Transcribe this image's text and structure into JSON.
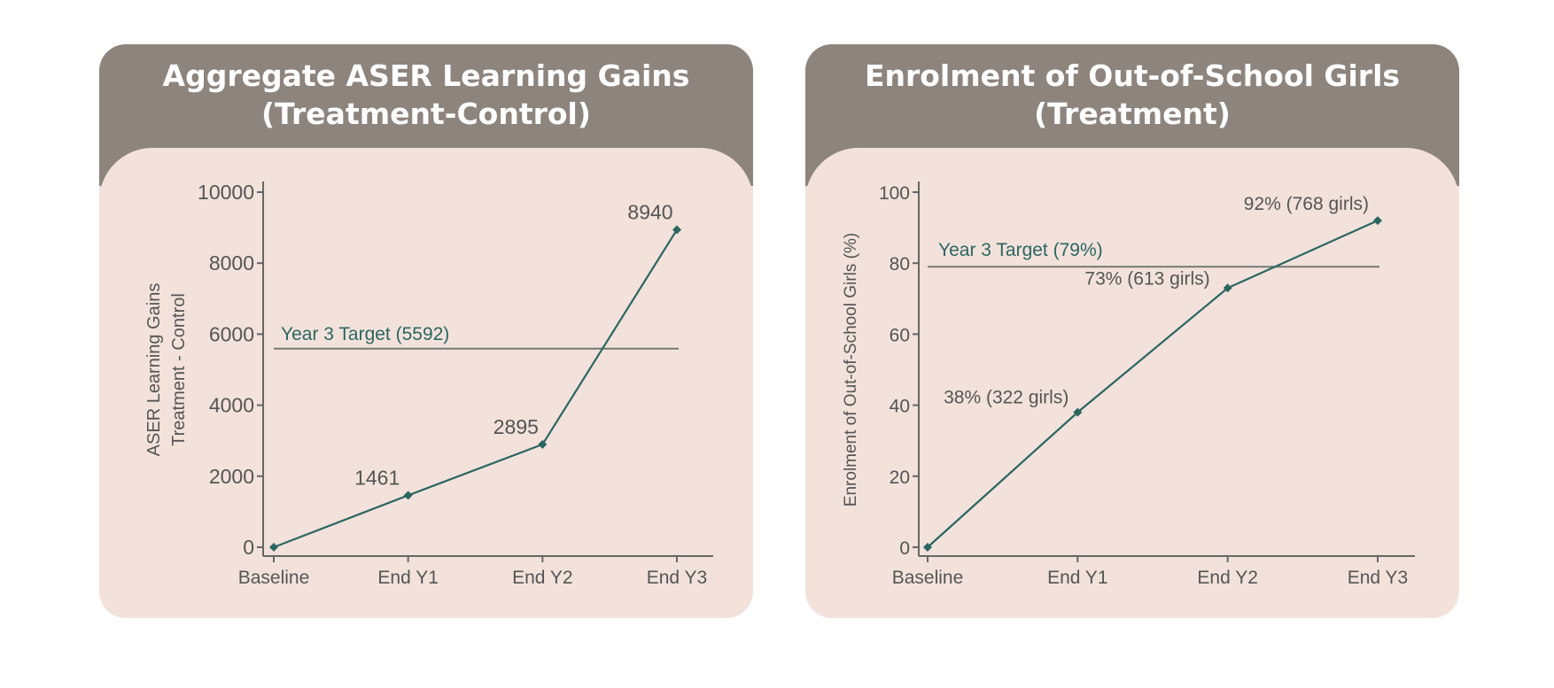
{
  "colors": {
    "header": "#8e847e",
    "panel": "#f2e2db",
    "series": "#2b6661",
    "axis": "#666666",
    "text": "#555555"
  },
  "chart_data": [
    {
      "type": "line",
      "title": "Aggregate ASER Learning Gains (Treatment-Control)",
      "title_lines": [
        "Aggregate ASER Learning Gains",
        "(Treatment-Control)"
      ],
      "ylabel_lines": [
        "ASER Learning Gains",
        "Treatment - Control"
      ],
      "xlabel": "",
      "categories": [
        "Baseline",
        "End Y1",
        "End Y2",
        "End Y3"
      ],
      "values": [
        0,
        1461,
        2895,
        8940
      ],
      "data_labels": [
        "",
        "1461",
        "2895",
        "8940"
      ],
      "ylim": [
        0,
        10000
      ],
      "yticks": [
        0,
        2000,
        4000,
        6000,
        8000,
        10000
      ],
      "ytick_labels": [
        "0",
        "2000",
        "4000",
        "6000",
        "8000",
        "10000"
      ],
      "target": {
        "value": 5592,
        "label": "Year 3 Target (5592)"
      },
      "grid": false,
      "legend": "none"
    },
    {
      "type": "line",
      "title": "Enrolment of Out-of-School Girls (Treatment)",
      "title_lines": [
        "Enrolment of Out-of-School Girls",
        "(Treatment)"
      ],
      "ylabel_lines": [
        "Enrolment of Out-of-School Girls (%)"
      ],
      "xlabel": "",
      "categories": [
        "Baseline",
        "End Y1",
        "End Y2",
        "End Y3"
      ],
      "values": [
        0,
        38,
        73,
        92
      ],
      "data_labels": [
        "",
        "38% (322 girls)",
        "73% (613 girls)",
        "92% (768 girls)"
      ],
      "ylim": [
        0,
        100
      ],
      "yticks": [
        0,
        20,
        40,
        60,
        80,
        100
      ],
      "ytick_labels": [
        "0",
        "20",
        "40",
        "60",
        "80",
        "100"
      ],
      "target": {
        "value": 79,
        "label": "Year 3 Target (79%)"
      },
      "grid": false,
      "legend": "none"
    }
  ]
}
